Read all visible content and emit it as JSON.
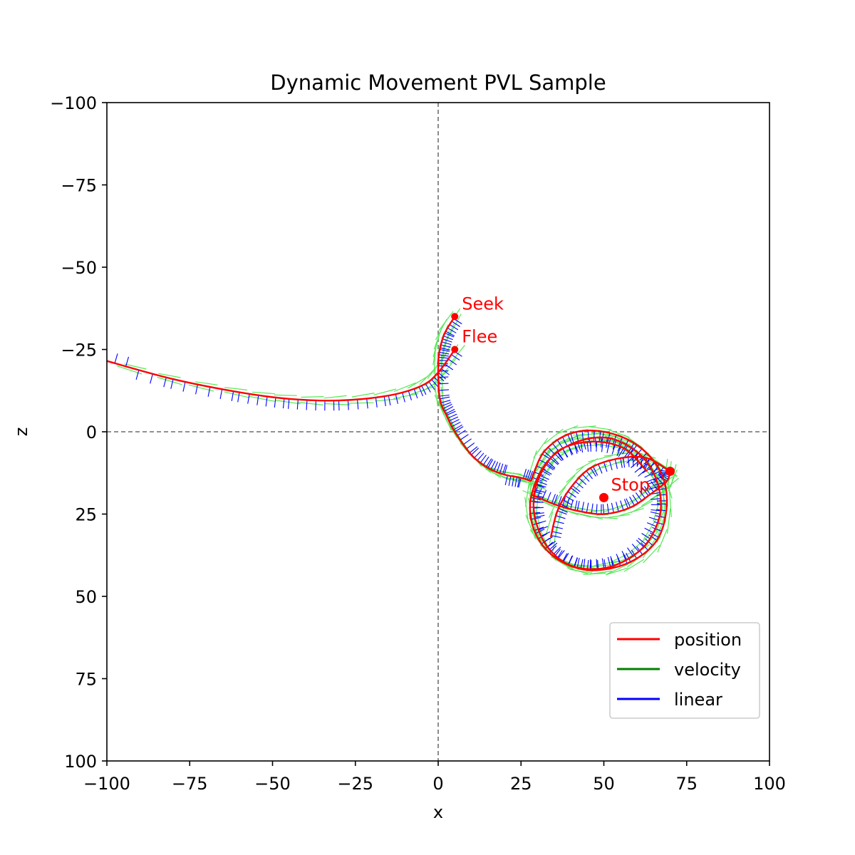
{
  "chart_data": {
    "type": "line",
    "title": "Dynamic Movement PVL Sample",
    "xlabel": "x",
    "ylabel": "z",
    "xlim": [
      -100,
      100
    ],
    "ylim": [
      -100,
      100
    ],
    "y_inverted": true,
    "x_ticks": [
      "−100",
      "−75",
      "−50",
      "−25",
      "0",
      "25",
      "50",
      "75",
      "100"
    ],
    "y_ticks": [
      "−100",
      "−75",
      "−50",
      "−25",
      "0",
      "25",
      "50",
      "75",
      "100"
    ],
    "tick_values": [
      -100,
      -75,
      -50,
      -25,
      0,
      25,
      50,
      75,
      100
    ],
    "reference_lines": {
      "x": 0,
      "z": 0,
      "style": "dashed",
      "color": "#808080"
    },
    "legend": {
      "placement": "lower-right",
      "entries": [
        {
          "label": "position",
          "color": "#ff0000"
        },
        {
          "label": "velocity",
          "color": "#008000"
        },
        {
          "label": "linear",
          "color": "#0000ff"
        }
      ]
    },
    "markers": [
      {
        "label": "Seek",
        "x": 5,
        "z": -35,
        "color": "#ff0000"
      },
      {
        "label": "Flee",
        "x": 5,
        "z": -25,
        "color": "#ff0000"
      },
      {
        "label": "Stop",
        "x": 50,
        "z": 20,
        "color": "#ff0000"
      },
      {
        "label": "",
        "x": 70,
        "z": 12,
        "color": "#ff0000"
      }
    ],
    "series": [
      {
        "name": "position",
        "color": "#ff0000",
        "paths": [
          [
            [
              -100,
              -21.5
            ],
            [
              -80,
              -16
            ],
            [
              -60,
              -12
            ],
            [
              -45,
              -10
            ],
            [
              -30,
              -9.5
            ],
            [
              -15,
              -11
            ],
            [
              -5,
              -14
            ],
            [
              0,
              -18
            ],
            [
              5,
              -25
            ]
          ],
          [
            [
              5,
              -35
            ],
            [
              2,
              -30
            ],
            [
              0.5,
              -25
            ],
            [
              0,
              -20
            ],
            [
              0.5,
              -10
            ],
            [
              2.5,
              -5
            ],
            [
              5,
              0
            ],
            [
              10,
              7
            ],
            [
              15,
              11
            ],
            [
              20,
              13
            ],
            [
              25,
              14
            ],
            [
              28,
              15
            ]
          ],
          [
            [
              28,
              15
            ],
            [
              32,
              6
            ],
            [
              40,
              0.5
            ],
            [
              50,
              0
            ],
            [
              60,
              4
            ],
            [
              67,
              12
            ],
            [
              69,
              22
            ],
            [
              66,
              33
            ],
            [
              57,
              40
            ],
            [
              45,
              42
            ],
            [
              35,
              38
            ],
            [
              29,
              30
            ],
            [
              28,
              20
            ],
            [
              33,
              9
            ],
            [
              42,
              3
            ],
            [
              52,
              2
            ],
            [
              61,
              7
            ],
            [
              66,
              15
            ],
            [
              67,
              25
            ],
            [
              62,
              35
            ],
            [
              52,
              41
            ],
            [
              41,
              41
            ],
            [
              33,
              35
            ],
            [
              29,
              25
            ],
            [
              30,
              15
            ],
            [
              36,
              6
            ],
            [
              46,
              3
            ],
            [
              56,
              5
            ],
            [
              63,
              12
            ]
          ],
          [
            [
              28,
              19
            ],
            [
              35,
              22
            ],
            [
              42,
              24
            ],
            [
              50,
              25
            ],
            [
              58,
              23
            ],
            [
              64,
              19
            ],
            [
              69,
              15
            ],
            [
              70,
              12
            ]
          ],
          [
            [
              70,
              12
            ],
            [
              63,
              8
            ],
            [
              55,
              8
            ],
            [
              46,
              11
            ],
            [
              40,
              17
            ],
            [
              36,
              24
            ],
            [
              34,
              32
            ]
          ]
        ]
      },
      {
        "name": "velocity",
        "color": "#54e854",
        "style": "dense tangent strokes along the trajectory",
        "loop_center": [
          47,
          20
        ],
        "loop_radius": [
          18,
          22
        ]
      },
      {
        "name": "linear",
        "color": "#0000ff",
        "style": "short inward strokes along the trajectory",
        "loop_center": [
          47,
          20
        ],
        "loop_radius": [
          18,
          22
        ]
      }
    ]
  }
}
